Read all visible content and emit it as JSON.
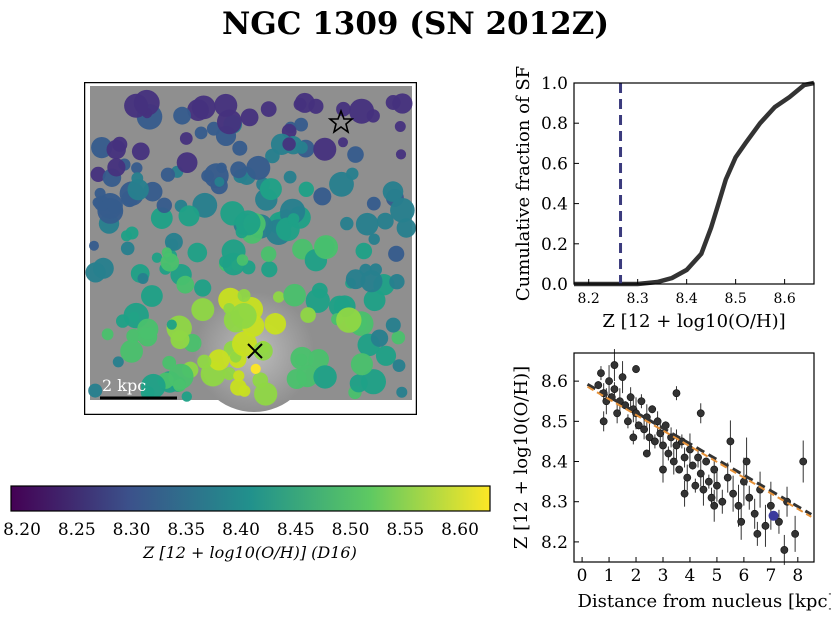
{
  "figure": {
    "title": "NGC 1309 (SN 2012Z)",
    "scale_bar_label": "2 kpc"
  },
  "colorbar": {
    "ticks": [
      "8.20",
      "8.25",
      "8.30",
      "8.35",
      "8.40",
      "8.45",
      "8.50",
      "8.55",
      "8.60"
    ],
    "label": "Z [12 + log10(O/H)] (D16)",
    "colors": [
      "#440154",
      "#3b528b",
      "#21918c",
      "#5ec962",
      "#fde725"
    ]
  },
  "chart_data": [
    {
      "type": "line",
      "title": "",
      "xlabel": "Z [12 + log10(O/H)]",
      "ylabel": "Cumulative fraction of SF",
      "xlim": [
        8.17,
        8.66
      ],
      "ylim": [
        0,
        1
      ],
      "xticks": [
        "8.2",
        "8.3",
        "8.4",
        "8.5",
        "8.6"
      ],
      "yticks": [
        "0.0",
        "0.2",
        "0.4",
        "0.6",
        "0.8",
        "1.0"
      ],
      "sn_line": {
        "x": 8.265,
        "color": "#3b3b7d",
        "style": "dashed"
      },
      "series": [
        {
          "name": "cumulative",
          "color": "#333333",
          "x": [
            8.17,
            8.3,
            8.34,
            8.37,
            8.4,
            8.43,
            8.45,
            8.465,
            8.48,
            8.5,
            8.52,
            8.55,
            8.58,
            8.61,
            8.64,
            8.66
          ],
          "y": [
            0.0,
            0.0,
            0.01,
            0.03,
            0.07,
            0.15,
            0.28,
            0.4,
            0.52,
            0.63,
            0.7,
            0.8,
            0.88,
            0.93,
            0.99,
            1.0
          ]
        }
      ]
    },
    {
      "type": "scatter",
      "title": "",
      "xlabel": "Distance from nucleus [kpc]",
      "ylabel": "Z [12 + log10(O/H)]",
      "xlim": [
        -0.3,
        8.6
      ],
      "ylim": [
        8.15,
        8.67
      ],
      "xticks": [
        "0",
        "1",
        "2",
        "3",
        "4",
        "5",
        "6",
        "7",
        "8"
      ],
      "yticks": [
        "8.2",
        "8.3",
        "8.4",
        "8.5",
        "8.6"
      ],
      "fit": {
        "slope": -0.039,
        "intercept": 8.6,
        "colors": [
          "#333333",
          "#e69138"
        ]
      },
      "sn_point": {
        "x": 7.1,
        "y": 8.265,
        "color": "#3b3b9d"
      },
      "points": [
        [
          0.6,
          8.59
        ],
        [
          0.7,
          8.62
        ],
        [
          0.8,
          8.57
        ],
        [
          0.9,
          8.55
        ],
        [
          1.0,
          8.6
        ],
        [
          1.1,
          8.56
        ],
        [
          1.2,
          8.58
        ],
        [
          1.3,
          8.52
        ],
        [
          1.4,
          8.55
        ],
        [
          1.5,
          8.61
        ],
        [
          1.6,
          8.54
        ],
        [
          1.7,
          8.5
        ],
        [
          1.8,
          8.56
        ],
        [
          1.9,
          8.53
        ],
        [
          2.0,
          8.52
        ],
        [
          2.1,
          8.49
        ],
        [
          2.2,
          8.55
        ],
        [
          2.3,
          8.48
        ],
        [
          2.4,
          8.51
        ],
        [
          2.5,
          8.46
        ],
        [
          2.6,
          8.53
        ],
        [
          2.7,
          8.45
        ],
        [
          2.8,
          8.5
        ],
        [
          2.9,
          8.47
        ],
        [
          3.0,
          8.44
        ],
        [
          3.1,
          8.49
        ],
        [
          3.2,
          8.42
        ],
        [
          3.3,
          8.46
        ],
        [
          3.4,
          8.4
        ],
        [
          3.5,
          8.44
        ],
        [
          3.6,
          8.38
        ],
        [
          3.7,
          8.45
        ],
        [
          3.8,
          8.41
        ],
        [
          3.9,
          8.36
        ],
        [
          4.0,
          8.43
        ],
        [
          4.1,
          8.39
        ],
        [
          4.2,
          8.34
        ],
        [
          4.3,
          8.41
        ],
        [
          4.4,
          8.37
        ],
        [
          4.5,
          8.33
        ],
        [
          4.6,
          8.4
        ],
        [
          4.7,
          8.35
        ],
        [
          4.8,
          8.31
        ],
        [
          4.9,
          8.38
        ],
        [
          5.0,
          8.34
        ],
        [
          5.2,
          8.3
        ],
        [
          5.4,
          8.36
        ],
        [
          5.6,
          8.32
        ],
        [
          5.8,
          8.29
        ],
        [
          6.0,
          8.35
        ],
        [
          6.2,
          8.31
        ],
        [
          6.4,
          8.27
        ],
        [
          6.6,
          8.33
        ],
        [
          6.8,
          8.24
        ],
        [
          7.0,
          8.29
        ],
        [
          7.3,
          8.25
        ],
        [
          7.6,
          8.3
        ],
        [
          7.9,
          8.22
        ],
        [
          8.2,
          8.4
        ],
        [
          1.2,
          8.64
        ],
        [
          2.0,
          8.63
        ],
        [
          3.5,
          8.57
        ],
        [
          4.4,
          8.52
        ],
        [
          5.5,
          8.45
        ],
        [
          6.1,
          8.4
        ],
        [
          2.4,
          8.42
        ],
        [
          1.9,
          8.46
        ],
        [
          0.8,
          8.5
        ],
        [
          3.0,
          8.38
        ],
        [
          4.9,
          8.29
        ],
        [
          6.5,
          8.22
        ],
        [
          7.5,
          8.18
        ],
        [
          5.9,
          8.25
        ],
        [
          3.8,
          8.32
        ]
      ]
    }
  ]
}
